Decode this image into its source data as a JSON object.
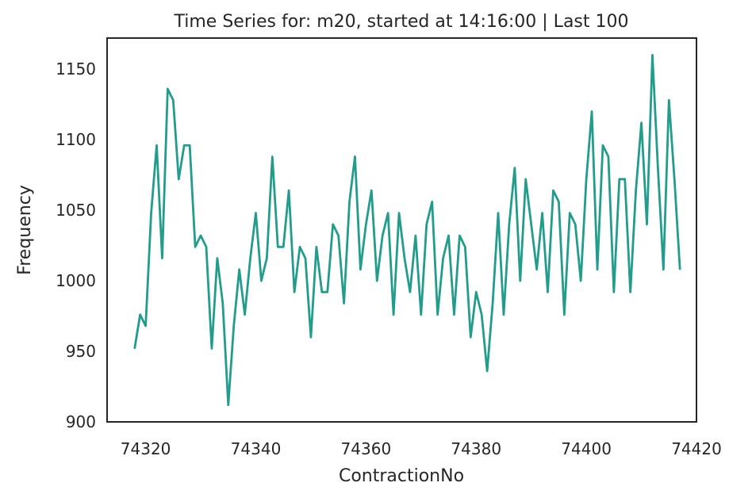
{
  "chart_data": {
    "type": "line",
    "title": "Time Series for: m20, started at 14:16:00 | Last 100",
    "xlabel": "ContractionNo",
    "ylabel": "Frequency",
    "xlim": [
      74313,
      74420
    ],
    "ylim": [
      900,
      1172
    ],
    "xticks": [
      74320,
      74340,
      74360,
      74380,
      74400,
      74420
    ],
    "yticks": [
      900,
      950,
      1000,
      1050,
      1100,
      1150
    ],
    "grid": false,
    "series": [
      {
        "name": "",
        "color": "#229C8C",
        "x": [
          74318,
          74319,
          74320,
          74321,
          74322,
          74323,
          74324,
          74325,
          74326,
          74327,
          74328,
          74329,
          74330,
          74331,
          74332,
          74333,
          74334,
          74335,
          74336,
          74337,
          74338,
          74339,
          74340,
          74341,
          74342,
          74343,
          74344,
          74345,
          74346,
          74347,
          74348,
          74349,
          74350,
          74351,
          74352,
          74353,
          74354,
          74355,
          74356,
          74357,
          74358,
          74359,
          74360,
          74361,
          74362,
          74363,
          74364,
          74365,
          74366,
          74367,
          74368,
          74369,
          74370,
          74371,
          74372,
          74373,
          74374,
          74375,
          74376,
          74377,
          74378,
          74379,
          74380,
          74381,
          74382,
          74383,
          74384,
          74385,
          74386,
          74387,
          74388,
          74389,
          74390,
          74391,
          74392,
          74393,
          74394,
          74395,
          74396,
          74397,
          74398,
          74399,
          74400,
          74401,
          74402,
          74403,
          74404,
          74405,
          74406,
          74407,
          74408,
          74409,
          74410,
          74411,
          74412,
          74413,
          74414,
          74415,
          74416,
          74417
        ],
        "y": [
          952,
          976,
          968,
          1048,
          1096,
          1016,
          1136,
          1128,
          1072,
          1096,
          1096,
          1024,
          1032,
          1024,
          952,
          1016,
          984,
          912,
          968,
          1008,
          976,
          1016,
          1048,
          1000,
          1016,
          1088,
          1024,
          1024,
          1064,
          992,
          1024,
          1016,
          960,
          1024,
          992,
          992,
          1040,
          1032,
          984,
          1056,
          1088,
          1008,
          1040,
          1064,
          1000,
          1032,
          1048,
          976,
          1048,
          1016,
          992,
          1032,
          976,
          1040,
          1056,
          976,
          1016,
          1032,
          976,
          1032,
          1024,
          960,
          992,
          976,
          936,
          984,
          1048,
          976,
          1040,
          1080,
          1000,
          1072,
          1040,
          1008,
          1048,
          992,
          1064,
          1056,
          976,
          1048,
          1040,
          1000,
          1072,
          1120,
          1008,
          1096,
          1088,
          992,
          1072,
          1072,
          992,
          1064,
          1112,
          1040,
          1160,
          1080,
          1008,
          1128,
          1072,
          1008
        ]
      }
    ]
  }
}
